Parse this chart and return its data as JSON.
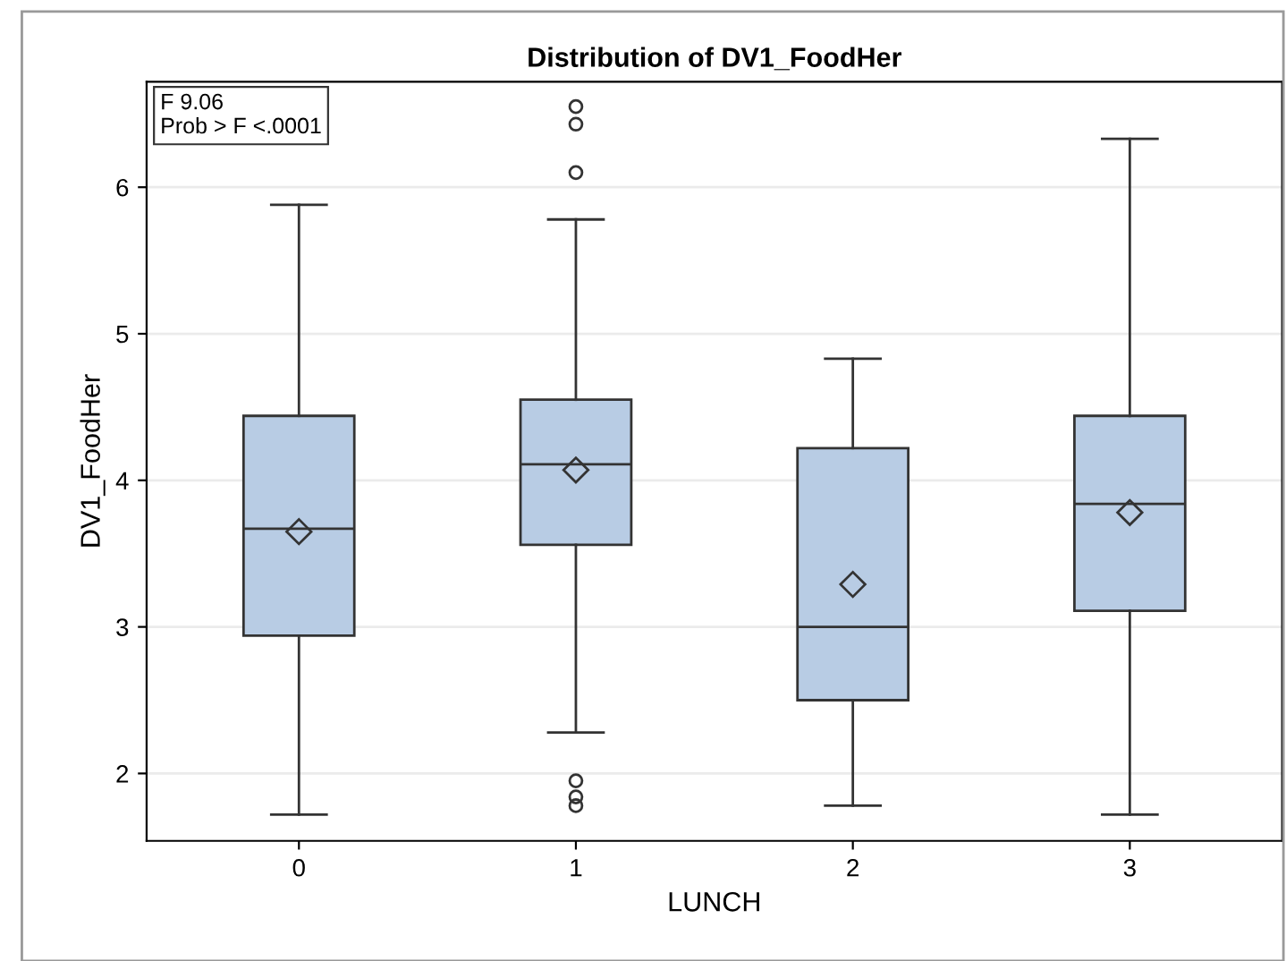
{
  "chart_data": {
    "type": "box",
    "title": "Distribution of DV1_FoodHer",
    "xlabel": "LUNCH",
    "ylabel": "DV1_FoodHer",
    "categories": [
      "0",
      "1",
      "2",
      "3"
    ],
    "boxes": [
      {
        "low": 1.72,
        "q1": 2.94,
        "median": 3.67,
        "q3": 4.44,
        "high": 5.88,
        "mean": 3.65
      },
      {
        "low": 2.28,
        "q1": 3.56,
        "median": 4.11,
        "q3": 4.55,
        "high": 5.78,
        "mean": 4.07,
        "outliers": [
          6.55,
          6.43,
          6.1,
          1.95,
          1.84,
          1.78
        ]
      },
      {
        "low": 1.78,
        "q1": 2.5,
        "median": 3.0,
        "q3": 4.22,
        "high": 4.83,
        "mean": 3.29
      },
      {
        "low": 1.72,
        "q1": 3.11,
        "median": 3.84,
        "q3": 4.44,
        "high": 6.33,
        "mean": 3.78
      }
    ],
    "color": "#b8cce4",
    "ylim": [
      1.54,
      6.72
    ],
    "yticks": [
      2,
      3,
      4,
      5,
      6
    ],
    "grid": "y",
    "legend": false,
    "annotations": [
      "F 9.06",
      "Prob > F <.0001"
    ]
  }
}
